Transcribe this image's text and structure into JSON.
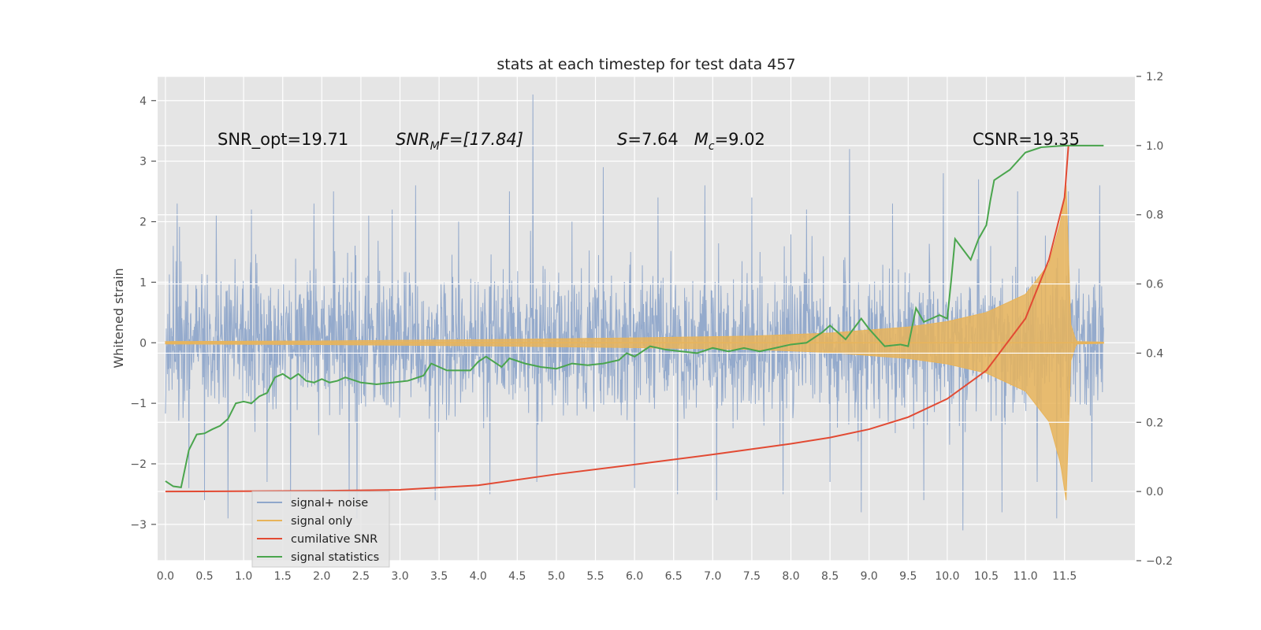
{
  "chart_data": {
    "type": "line",
    "title": "stats at each timestep for test data 457",
    "ylabel": "Whitened strain",
    "xlabel": "",
    "xlim": [
      -0.1,
      12.4
    ],
    "ylim": [
      -3.6,
      4.4
    ],
    "y2lim": [
      -0.2,
      1.2
    ],
    "grid": true,
    "legend_position": "lower-left",
    "x_ticks": [
      "0.0",
      "0.5",
      "1.0",
      "1.5",
      "2.0",
      "2.5",
      "3.0",
      "3.5",
      "4.0",
      "4.5",
      "5.0",
      "5.5",
      "6.0",
      "6.5",
      "7.0",
      "7.5",
      "8.0",
      "8.5",
      "9.0",
      "9.5",
      "10.0",
      "10.5",
      "11.0",
      "11.5"
    ],
    "y_ticks": [
      "4",
      "3",
      "2",
      "1",
      "0",
      "−1",
      "−2",
      "−3"
    ],
    "y2_ticks": [
      "1.2",
      "1.0",
      "0.8",
      "0.6",
      "0.4",
      "0.2",
      "0.0",
      "−0.2"
    ],
    "annotations": [
      {
        "id": "snr-opt",
        "text": "SNR_opt=19.71"
      },
      {
        "id": "snr-mf",
        "main": "SNR",
        "sub": "M",
        "rest": "F=[17.84]"
      },
      {
        "id": "s-mc",
        "s_main": "S",
        "s_rest": "=7.64",
        "m_main": "M",
        "m_sub": "c",
        "m_rest": "=9.02"
      },
      {
        "id": "csnr",
        "text": "CSNR=19.35"
      }
    ],
    "series": [
      {
        "name": "signal+ noise",
        "color": "#8fa7ca",
        "axis": "left",
        "noise_range": [
          0.0,
          12.0
        ],
        "typical_amplitude": 1.0,
        "spikes": [
          [
            0.1,
            1.6
          ],
          [
            0.15,
            2.3
          ],
          [
            0.3,
            -2.4
          ],
          [
            0.5,
            -2.6
          ],
          [
            0.65,
            2.1
          ],
          [
            0.8,
            -2.9
          ],
          [
            1.1,
            2.2
          ],
          [
            1.3,
            -2.3
          ],
          [
            1.6,
            -2.7
          ],
          [
            1.9,
            2.3
          ],
          [
            2.15,
            2.5
          ],
          [
            2.35,
            -2.6
          ],
          [
            2.45,
            -2.9
          ],
          [
            2.6,
            2.1
          ],
          [
            2.9,
            2.2
          ],
          [
            3.2,
            2.6
          ],
          [
            3.45,
            -2.6
          ],
          [
            3.75,
            2.0
          ],
          [
            4.15,
            -2.5
          ],
          [
            4.4,
            2.5
          ],
          [
            4.7,
            4.1
          ],
          [
            4.75,
            -2.3
          ],
          [
            5.2,
            2.0
          ],
          [
            5.6,
            2.9
          ],
          [
            5.95,
            1.5
          ],
          [
            6.0,
            -2.4
          ],
          [
            6.3,
            2.4
          ],
          [
            6.55,
            -2.5
          ],
          [
            6.9,
            2.6
          ],
          [
            7.05,
            -2.6
          ],
          [
            7.5,
            2.4
          ],
          [
            7.9,
            -2.5
          ],
          [
            8.2,
            2.2
          ],
          [
            8.5,
            -2.3
          ],
          [
            8.75,
            3.2
          ],
          [
            8.9,
            -2.8
          ],
          [
            9.3,
            2.3
          ],
          [
            9.7,
            -2.6
          ],
          [
            9.95,
            2.8
          ],
          [
            10.2,
            -3.1
          ],
          [
            10.4,
            2.7
          ],
          [
            10.7,
            -2.8
          ],
          [
            10.9,
            2.5
          ],
          [
            11.15,
            -2.3
          ],
          [
            11.4,
            -2.9
          ],
          [
            11.55,
            2.5
          ],
          [
            11.85,
            -2.3
          ],
          [
            11.95,
            2.6
          ]
        ]
      },
      {
        "name": "signal only",
        "color": "#e8b45a",
        "axis": "left",
        "envelope_x": [
          0.0,
          2.0,
          4.0,
          6.0,
          7.5,
          8.5,
          9.5,
          10.0,
          10.5,
          11.0,
          11.3,
          11.45,
          11.52,
          11.58,
          11.65,
          12.0
        ],
        "envelope_y": [
          0.02,
          0.03,
          0.05,
          0.08,
          0.11,
          0.16,
          0.26,
          0.35,
          0.5,
          0.8,
          1.3,
          2.0,
          2.6,
          0.3,
          0.02,
          0.01
        ]
      },
      {
        "name": "cumilative SNR",
        "color": "#e24a33",
        "axis": "right",
        "x": [
          0.0,
          2.0,
          3.0,
          4.0,
          5.0,
          6.0,
          7.0,
          8.0,
          8.5,
          9.0,
          9.5,
          10.0,
          10.5,
          11.0,
          11.3,
          11.5,
          11.55
        ],
        "y": [
          0.0,
          0.002,
          0.005,
          0.018,
          0.05,
          0.078,
          0.107,
          0.138,
          0.156,
          0.18,
          0.215,
          0.268,
          0.35,
          0.5,
          0.67,
          0.85,
          1.0
        ]
      },
      {
        "name": "signal statistics",
        "color": "#4aa54d",
        "axis": "right",
        "x": [
          0.0,
          0.1,
          0.2,
          0.3,
          0.4,
          0.5,
          0.6,
          0.7,
          0.8,
          0.9,
          1.0,
          1.1,
          1.2,
          1.3,
          1.4,
          1.5,
          1.6,
          1.7,
          1.8,
          1.9,
          2.0,
          2.1,
          2.2,
          2.3,
          2.5,
          2.7,
          2.9,
          3.1,
          3.3,
          3.4,
          3.5,
          3.6,
          3.7,
          3.9,
          4.0,
          4.1,
          4.3,
          4.4,
          4.6,
          4.8,
          5.0,
          5.2,
          5.4,
          5.6,
          5.8,
          5.9,
          6.0,
          6.2,
          6.4,
          6.6,
          6.8,
          7.0,
          7.2,
          7.4,
          7.6,
          7.8,
          8.0,
          8.2,
          8.4,
          8.5,
          8.7,
          8.9,
          9.0,
          9.2,
          9.4,
          9.5,
          9.6,
          9.7,
          9.8,
          9.9,
          10.0,
          10.05,
          10.1,
          10.2,
          10.3,
          10.4,
          10.5,
          10.55,
          10.6,
          10.8,
          11.0,
          11.2,
          11.5,
          12.0
        ],
        "y": [
          0.03,
          0.015,
          0.012,
          0.12,
          0.165,
          0.168,
          0.18,
          0.19,
          0.21,
          0.255,
          0.26,
          0.255,
          0.275,
          0.285,
          0.33,
          0.34,
          0.325,
          0.34,
          0.32,
          0.315,
          0.325,
          0.315,
          0.32,
          0.33,
          0.315,
          0.31,
          0.315,
          0.32,
          0.335,
          0.37,
          0.36,
          0.35,
          0.35,
          0.35,
          0.375,
          0.39,
          0.36,
          0.385,
          0.37,
          0.36,
          0.355,
          0.37,
          0.365,
          0.37,
          0.38,
          0.4,
          0.39,
          0.42,
          0.41,
          0.405,
          0.4,
          0.415,
          0.405,
          0.415,
          0.405,
          0.415,
          0.425,
          0.43,
          0.46,
          0.48,
          0.44,
          0.5,
          0.47,
          0.42,
          0.425,
          0.42,
          0.53,
          0.49,
          0.5,
          0.51,
          0.5,
          0.61,
          0.73,
          0.7,
          0.67,
          0.73,
          0.77,
          0.84,
          0.9,
          0.93,
          0.98,
          0.995,
          1.0,
          1.0
        ]
      }
    ]
  }
}
